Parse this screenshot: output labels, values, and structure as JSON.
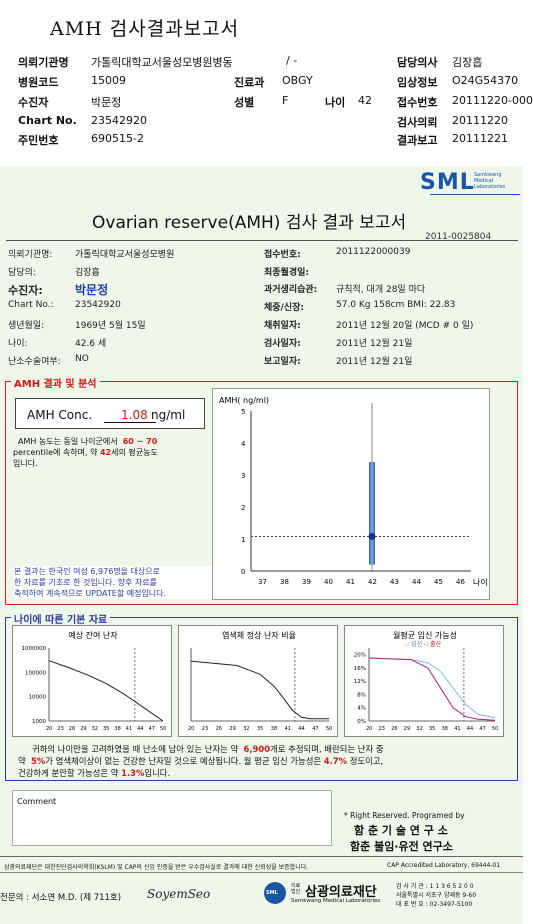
{
  "header": {
    "title": "AMH 검사결과보고서",
    "rows": [
      {
        "l1": "의뢰기관명",
        "v1": "가톨릭대학교서울성모병원병동",
        "l2": "",
        "v2": "/ -",
        "l3": "담당의사",
        "v3": "김장흡"
      },
      {
        "l1": "병원코드",
        "v1": "15009",
        "l2": "진료과",
        "v2": "OBGY",
        "l3": "임상정보",
        "v3": "O24G54370"
      },
      {
        "l1": "수진자",
        "v1": "박문정",
        "l2": "성별",
        "v2": "F",
        "l4": "나이",
        "v4": "42",
        "l3": "접수번호",
        "v3": "20111220-000"
      },
      {
        "l1": "Chart No.",
        "v1": "23542920",
        "l3": "검사의뢰",
        "v3": "20111220"
      },
      {
        "l1": "주민번호",
        "v1": "690515-2",
        "l3": "결과보고",
        "v3": "20111221"
      }
    ]
  },
  "report": {
    "logo": "SML",
    "logo_sub": [
      "Samkwang",
      "Medical",
      "Laboratories"
    ],
    "title": "Ovarian reserve(AMH) 검사 결과 보고서",
    "report_no": "2011-0025804",
    "left_info": [
      {
        "label": "의뢰기관명:",
        "value": "가톨릭대학교서울성모병원"
      },
      {
        "label": "담당의:",
        "value": "김장흡"
      },
      {
        "label": "수진자:",
        "value": "박문정"
      },
      {
        "label": "Chart No.:",
        "value": "23542920"
      },
      {
        "label": "생년월일:",
        "value": "1969년 5월 15일"
      },
      {
        "label": "나이:",
        "value": "42.6 세"
      },
      {
        "label": "난소수술여부:",
        "value": "NO"
      }
    ],
    "right_info": [
      {
        "label": "접수번호:",
        "value": "2011122000039"
      },
      {
        "label": "최종월경일:",
        "value": ""
      },
      {
        "label": "과거생리습관:",
        "value": "규칙적, 대개  28일 마다"
      },
      {
        "label": "체중/신장:",
        "value": "57.0 Kg   158cm   BMI:  22.83"
      },
      {
        "label": "채취일자:",
        "value": "2011년 12월 20일  (MCD # 0 일)"
      },
      {
        "label": "검사일자:",
        "value": "2011년 12월 21일"
      },
      {
        "label": "보고일자:",
        "value": "2011년 12월 21일"
      }
    ],
    "amh_section_title": "AMH 결과 및 분석",
    "amh_conc_label": "AMH Conc.",
    "amh_conc_value": "1.08",
    "amh_conc_unit": "ng/ml",
    "amh_desc_1a": "AMH 농도는 동일 나이군에서",
    "amh_desc_1b": "60 ~  70",
    "amh_desc_2a": "percentile에 속하며, 약",
    "amh_desc_2b": "42",
    "amh_desc_2c": "세의 평균농도",
    "amh_desc_3": "입니다.",
    "amh_note": [
      "본 결과는 한국인 여성 6,976명을 대상으로",
      "한 자료를 기초로 한 것입니다. 향후 자료를",
      "축적하여 계속적으로 UPDATE할 예정입니다."
    ],
    "age_section_title": "나이에 따른 기본 자료",
    "chart_titles": [
      "예상 잔여 난자",
      "염색체 정상 난자 비율",
      "월평균 임신 가능성"
    ],
    "fert_legend": {
      "a": "임신",
      "b": "출산"
    },
    "summary_1a": "귀하의 나이만을 고려하였을 때 난소에 남아 있는 난자는 약",
    "summary_1b": "6,900",
    "summary_1c": "개로 추정되며, 배란되는 난자 중",
    "summary_2a": "약",
    "summary_2b": "5%",
    "summary_2c": "가 염색체이상이 없는 건강한 난자일 것으로 예상됩니다. 월 평균 임신 가능성은",
    "summary_2d": "4.7%",
    "summary_2e": "정도이고,",
    "summary_3a": "건강하게 분만할 가능성은 약",
    "summary_3b": "1.3%",
    "summary_3c": "입니다.",
    "comment_label": "Comment",
    "rights_1": "* Right Reserved. Programed by",
    "rights_2": "함 춘  기 술  연 구 소",
    "rights_3": "함춘 불임·유전 연구소",
    "footer_cert": "삼광의료재단은 대한진단검사의학회(KSLM) 및 CAP의 신임 인증을 받은 우수검사실로 결과에 대한 신뢰성을 보증합니다.",
    "footer_cap": "CAP  Accredited  Laboratory,  69444-01",
    "footer_doctor": "전문의 : 서소연 M.D. (제 711호)",
    "footer_sign": "SoyemSeo",
    "footer_org": "삼광의료재단",
    "footer_org_prefix": "의료 법인",
    "footer_org_en": "Samkwang Medical Laboratories",
    "footer_addr": [
      "검 사 기 관 : 1 1 3 6 5 2 0 0",
      "서울특별시 서초구 양재동 9-60",
      "대 표 번 호 : 02-3497-5100"
    ]
  },
  "chart_data": [
    {
      "type": "scatter",
      "title": "",
      "ylabel": "AMH( ng/ml)",
      "xlabel": "나이",
      "x_ticks": [
        37,
        38,
        39,
        40,
        41,
        42,
        43,
        44,
        45,
        46
      ],
      "y_ticks": [
        0,
        1,
        2,
        3,
        4,
        5
      ],
      "xlim": [
        36.5,
        46.5
      ],
      "ylim": [
        0,
        5
      ],
      "reference_line_y": 1.08,
      "range_bar": {
        "x": 42,
        "ymin": 0.2,
        "ymax": 3.4
      },
      "point": {
        "x": 42,
        "y": 1.08
      }
    },
    {
      "type": "line",
      "title": "예상 잔여 난자",
      "y_scale": "log",
      "y_ticks": [
        1000,
        10000,
        100000,
        1000000
      ],
      "x_ticks": [
        20,
        23,
        26,
        29,
        32,
        35,
        38,
        41,
        44,
        47,
        50
      ],
      "marker_x": 42.6,
      "series": [
        {
          "x": [
            20,
            25,
            30,
            35,
            40,
            45,
            50
          ],
          "y": [
            300000,
            160000,
            80000,
            35000,
            12000,
            3500,
            1000
          ]
        }
      ]
    },
    {
      "type": "line",
      "title": "염색체 정상 난자 비율",
      "x_ticks": [
        20,
        23,
        26,
        29,
        32,
        35,
        38,
        41,
        44,
        47,
        50
      ],
      "marker_x": 42.6,
      "series": [
        {
          "x": [
            20,
            30,
            35,
            38,
            40,
            42,
            44,
            46,
            50
          ],
          "y": [
            82,
            76,
            64,
            48,
            32,
            15,
            5,
            3,
            3
          ]
        }
      ]
    },
    {
      "type": "line",
      "title": "월평균 임신 가능성",
      "y_ticks": [
        "0%",
        "4%",
        "8%",
        "12%",
        "16%",
        "20%"
      ],
      "x_ticks": [
        20,
        23,
        26,
        29,
        32,
        35,
        38,
        41,
        44,
        47,
        50
      ],
      "marker_x": 42.6,
      "series": [
        {
          "name": "임신",
          "x": [
            20,
            30,
            34,
            37,
            40,
            43,
            46,
            50
          ],
          "y": [
            19,
            18.5,
            17.5,
            15,
            10,
            5,
            2,
            1
          ]
        },
        {
          "name": "출산",
          "x": [
            20,
            30,
            34,
            37,
            40,
            43,
            46,
            50
          ],
          "y": [
            19,
            18.5,
            16,
            10,
            4,
            1.3,
            0.5,
            0.2
          ]
        }
      ]
    }
  ]
}
